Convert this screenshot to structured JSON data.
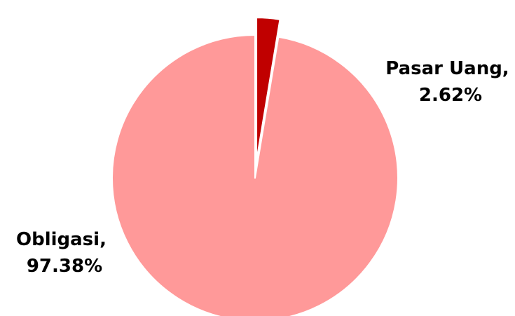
{
  "chart_data": {
    "type": "pie",
    "title": "",
    "slices": [
      {
        "label": "Pasar Uang",
        "value": 2.62,
        "display": "2.62%",
        "color": "#c00000",
        "exploded": true
      },
      {
        "label": "Obligasi",
        "value": 97.38,
        "display": "97.38%",
        "color": "#ff9999",
        "exploded": false
      }
    ],
    "legend": "none",
    "data_labels": [
      {
        "line1": "Pasar Uang,",
        "line2": "2.62%"
      },
      {
        "line1": "Obligasi,",
        "line2": "97.38%"
      }
    ]
  }
}
